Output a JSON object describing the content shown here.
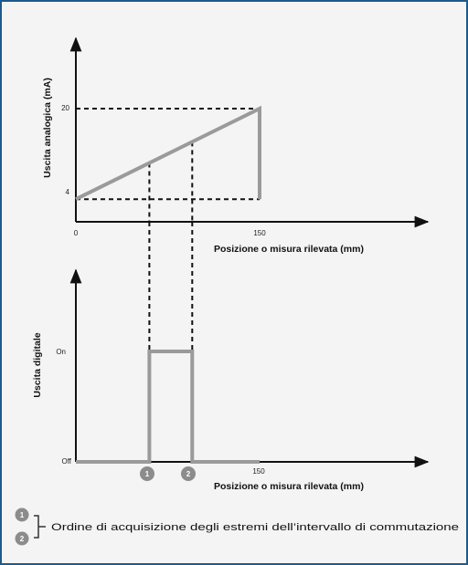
{
  "chart_data": [
    {
      "type": "line",
      "ylabel": "Uscita analogica (mA)",
      "xlabel": "Posizione o misura rilevata (mm)",
      "x_ticks": [
        "0",
        "150"
      ],
      "y_ticks": [
        "4",
        "20"
      ],
      "xlim": [
        0,
        200
      ],
      "ylim": [
        0,
        26
      ],
      "series": [
        {
          "x": [
            0,
            150,
            150
          ],
          "y": [
            4,
            20,
            4
          ]
        }
      ],
      "guides": {
        "x1": 60,
        "x2": 95
      },
      "colors": {
        "series": "#9a9a9a",
        "axis": "#111111"
      }
    },
    {
      "type": "line",
      "ylabel": "Uscita digitale",
      "xlabel": "Posizione o misura rilevata (mm)",
      "x_ticks": [
        "150"
      ],
      "y_ticks": [
        "On",
        "Off"
      ],
      "xlim": [
        0,
        200
      ],
      "series": [
        {
          "x": [
            0,
            60,
            60,
            95,
            95,
            150
          ],
          "y": [
            "Off",
            "Off",
            "On",
            "On",
            "Off",
            "Off"
          ]
        }
      ],
      "markers": [
        "1",
        "2"
      ],
      "colors": {
        "series": "#9a9a9a",
        "marker": "#8c8c8c"
      }
    }
  ],
  "legend": {
    "badges": [
      "1",
      "2"
    ],
    "text": "Ordine di acquisizione degli estremi dell’intervallo di commutazione"
  }
}
